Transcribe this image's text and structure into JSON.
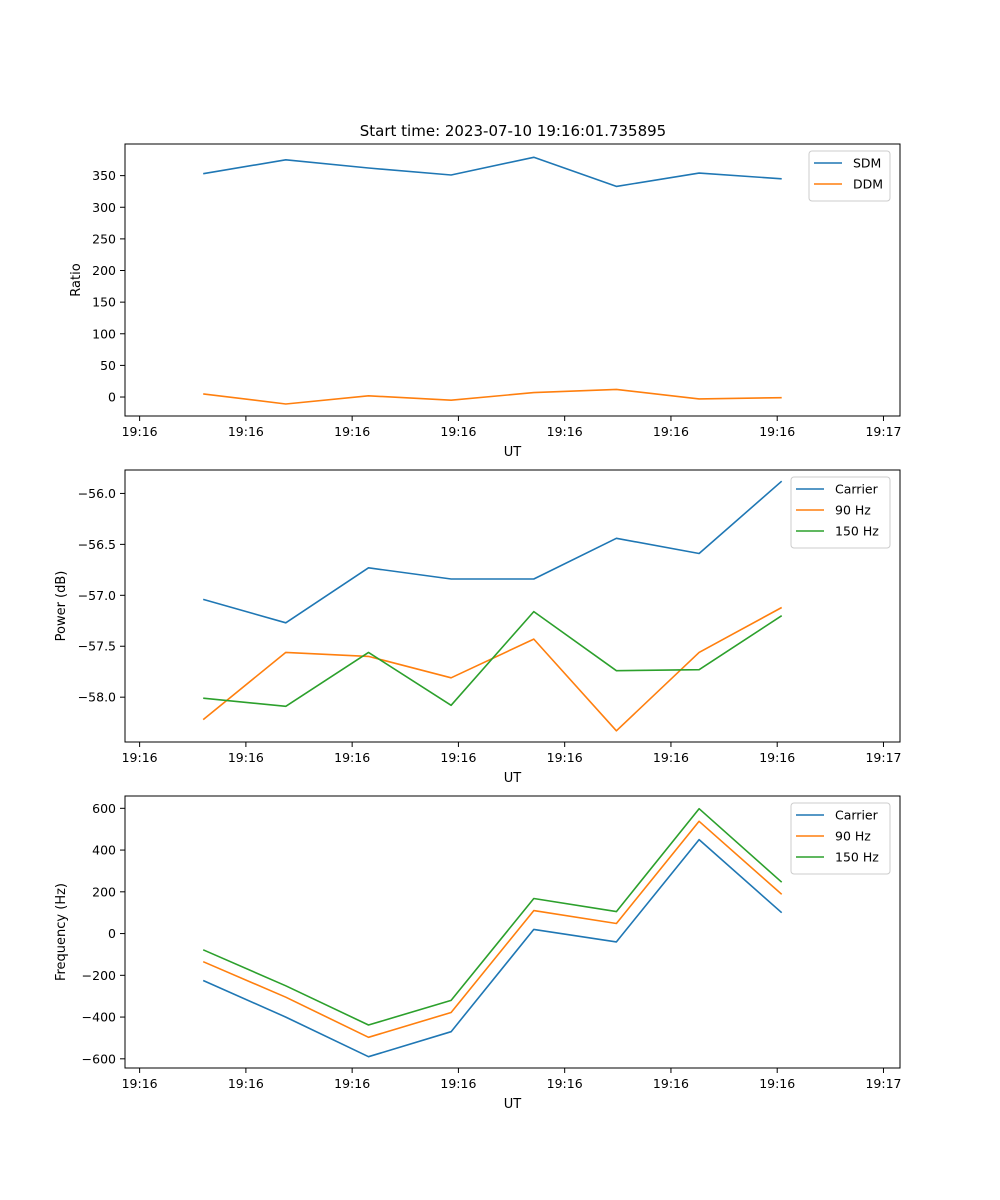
{
  "title": "Start time: 2023-07-10 19:16:01.735895",
  "colors": {
    "blue": "#1f77b4",
    "orange": "#ff7f0e",
    "green": "#2ca02c"
  },
  "chart_data": [
    {
      "type": "line",
      "xlabel": "UT",
      "ylabel": "Ratio",
      "x_tick_labels": [
        "19:16",
        "19:16",
        "19:16",
        "19:16",
        "19:16",
        "19:16",
        "19:16",
        "19:17"
      ],
      "xlim": [
        -0.115,
        5.98
      ],
      "ylim": [
        -30,
        400
      ],
      "yticks": [
        0,
        50,
        100,
        150,
        200,
        250,
        300,
        350
      ],
      "x": [
        0.5,
        1.15,
        1.8,
        2.45,
        3.1,
        3.75,
        4.4,
        5.05
      ],
      "legend_position": "top-right",
      "series": [
        {
          "name": "SDM",
          "color": "#1f77b4",
          "values": [
            353,
            375,
            362,
            351,
            379,
            333,
            354,
            345
          ]
        },
        {
          "name": "DDM",
          "color": "#ff7f0e",
          "values": [
            5,
            -11,
            2,
            -5,
            7,
            12,
            -3,
            -1
          ]
        }
      ]
    },
    {
      "type": "line",
      "xlabel": "UT",
      "ylabel": "Power (dB)",
      "x_tick_labels": [
        "19:16",
        "19:16",
        "19:16",
        "19:16",
        "19:16",
        "19:16",
        "19:16",
        "19:17"
      ],
      "xlim": [
        -0.115,
        5.98
      ],
      "ylim": [
        -58.44,
        -55.77
      ],
      "yticks": [
        -58.0,
        -57.5,
        -57.0,
        -56.5,
        -56.0
      ],
      "ytick_labels": [
        "−58.0",
        "−57.5",
        "−57.0",
        "−56.5",
        "−56.0"
      ],
      "x": [
        0.5,
        1.15,
        1.8,
        2.45,
        3.1,
        3.75,
        4.4,
        5.05
      ],
      "legend_position": "top-right",
      "series": [
        {
          "name": "Carrier",
          "color": "#1f77b4",
          "values": [
            -57.04,
            -57.27,
            -56.73,
            -56.84,
            -56.84,
            -56.44,
            -56.59,
            -55.88
          ]
        },
        {
          "name": "90 Hz",
          "color": "#ff7f0e",
          "values": [
            -58.22,
            -57.56,
            -57.6,
            -57.81,
            -57.43,
            -58.33,
            -57.56,
            -57.12
          ]
        },
        {
          "name": "150 Hz",
          "color": "#2ca02c",
          "values": [
            -58.01,
            -58.09,
            -57.56,
            -58.08,
            -57.16,
            -57.74,
            -57.73,
            -57.2
          ]
        }
      ]
    },
    {
      "type": "line",
      "xlabel": "UT",
      "ylabel": "Frequency (Hz)",
      "x_tick_labels": [
        "19:16",
        "19:16",
        "19:16",
        "19:16",
        "19:16",
        "19:16",
        "19:16",
        "19:17"
      ],
      "xlim": [
        -0.115,
        5.98
      ],
      "ylim": [
        -644,
        659
      ],
      "yticks": [
        -600,
        -400,
        -200,
        0,
        200,
        400,
        600
      ],
      "ytick_labels": [
        "−600",
        "−400",
        "−200",
        "0",
        "200",
        "400",
        "600"
      ],
      "x": [
        0.5,
        1.15,
        1.8,
        2.45,
        3.1,
        3.75,
        4.4,
        5.05
      ],
      "legend_position": "top-right",
      "series": [
        {
          "name": "Carrier",
          "color": "#1f77b4",
          "values": [
            -225,
            -400,
            -590,
            -470,
            20,
            -40,
            450,
            100
          ]
        },
        {
          "name": "90 Hz",
          "color": "#ff7f0e",
          "values": [
            -135,
            -305,
            -497,
            -378,
            110,
            48,
            538,
            188
          ]
        },
        {
          "name": "150 Hz",
          "color": "#2ca02c",
          "values": [
            -78,
            -250,
            -438,
            -320,
            168,
            105,
            598,
            246
          ]
        }
      ]
    }
  ]
}
